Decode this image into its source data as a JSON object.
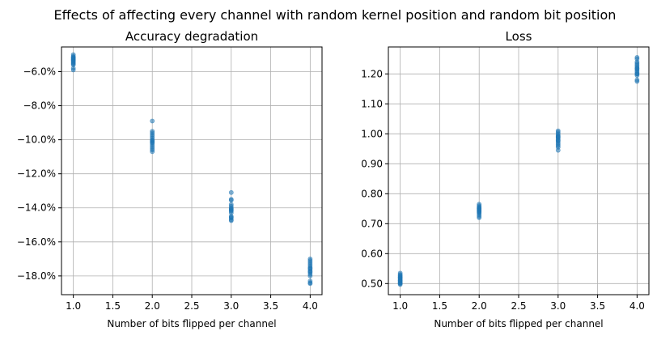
{
  "figure": {
    "suptitle": "Effects of affecting every channel with random kernel position and random bit position",
    "point_color": "#1f77b4"
  },
  "chart_data": [
    {
      "type": "scatter",
      "title": "Accuracy degradation",
      "xlabel": "Number of bits flipped per channel",
      "ylabel": "",
      "xlim": [
        0.85,
        4.15
      ],
      "ylim": [
        -19.1,
        -4.55
      ],
      "xticks": [
        1.0,
        1.5,
        2.0,
        2.5,
        3.0,
        3.5,
        4.0
      ],
      "xtick_labels": [
        "1.0",
        "1.5",
        "2.0",
        "2.5",
        "3.0",
        "3.5",
        "4.0"
      ],
      "yticks": [
        -18,
        -16,
        -14,
        -12,
        -10,
        -8,
        -6
      ],
      "ytick_labels": [
        "−18.0%",
        "−16.0%",
        "−14.0%",
        "−12.0%",
        "−10.0%",
        "−8.0%",
        "−6.0%"
      ],
      "grid": true,
      "series": [
        {
          "x": [
            1,
            1,
            1,
            1,
            1,
            1,
            1,
            1,
            1,
            1,
            1,
            1,
            1,
            1,
            1,
            1,
            2,
            2,
            2,
            2,
            2,
            2,
            2,
            2,
            2,
            2,
            2,
            2,
            2,
            2,
            2,
            2,
            3,
            3,
            3,
            3,
            3,
            3,
            3,
            3,
            3,
            3,
            3,
            3,
            3,
            3,
            3,
            3,
            4,
            4,
            4,
            4,
            4,
            4,
            4,
            4,
            4,
            4,
            4,
            4,
            4,
            4,
            4,
            4
          ],
          "y": [
            -5.0,
            -5.1,
            -5.15,
            -5.2,
            -5.25,
            -5.3,
            -5.35,
            -5.4,
            -5.45,
            -5.5,
            -5.55,
            -5.6,
            -5.3,
            -5.2,
            -5.8,
            -5.9,
            -8.9,
            -9.5,
            -9.6,
            -9.7,
            -9.8,
            -9.9,
            -10.0,
            -10.05,
            -10.1,
            -10.15,
            -10.2,
            -10.3,
            -10.4,
            -10.5,
            -10.6,
            -10.7,
            -13.1,
            -13.5,
            -13.55,
            -13.8,
            -13.9,
            -14.0,
            -14.05,
            -14.1,
            -14.15,
            -14.2,
            -14.3,
            -14.5,
            -14.55,
            -14.6,
            -14.7,
            -14.75,
            -17.0,
            -17.1,
            -17.2,
            -17.3,
            -17.4,
            -17.5,
            -17.55,
            -17.6,
            -17.7,
            -17.75,
            -17.8,
            -17.9,
            -18.0,
            -18.3,
            -18.4,
            -18.45
          ]
        }
      ]
    },
    {
      "type": "scatter",
      "title": "Loss",
      "xlabel": "Number of bits flipped per channel",
      "ylabel": "",
      "xlim": [
        0.85,
        4.15
      ],
      "ylim": [
        0.463,
        1.29
      ],
      "xticks": [
        1.0,
        1.5,
        2.0,
        2.5,
        3.0,
        3.5,
        4.0
      ],
      "xtick_labels": [
        "1.0",
        "1.5",
        "2.0",
        "2.5",
        "3.0",
        "3.5",
        "4.0"
      ],
      "yticks": [
        0.5,
        0.6,
        0.7,
        0.8,
        0.9,
        1.0,
        1.1,
        1.2
      ],
      "ytick_labels": [
        "0.50",
        "0.60",
        "0.70",
        "0.80",
        "0.90",
        "1.00",
        "1.10",
        "1.20"
      ],
      "grid": true,
      "series": [
        {
          "x": [
            1,
            1,
            1,
            1,
            1,
            1,
            1,
            1,
            1,
            1,
            1,
            1,
            1,
            1,
            1,
            1,
            2,
            2,
            2,
            2,
            2,
            2,
            2,
            2,
            2,
            2,
            2,
            2,
            2,
            2,
            2,
            2,
            3,
            3,
            3,
            3,
            3,
            3,
            3,
            3,
            3,
            3,
            3,
            3,
            3,
            3,
            3,
            3,
            4,
            4,
            4,
            4,
            4,
            4,
            4,
            4,
            4,
            4,
            4,
            4,
            4,
            4,
            4,
            4
          ],
          "y": [
            0.497,
            0.5,
            0.503,
            0.506,
            0.509,
            0.512,
            0.515,
            0.518,
            0.521,
            0.524,
            0.527,
            0.53,
            0.535,
            0.502,
            0.51,
            0.52,
            0.72,
            0.725,
            0.73,
            0.735,
            0.74,
            0.742,
            0.745,
            0.748,
            0.75,
            0.753,
            0.756,
            0.76,
            0.765,
            0.738,
            0.745,
            0.752,
            0.945,
            0.955,
            0.96,
            0.965,
            0.97,
            0.975,
            0.98,
            0.985,
            0.99,
            0.995,
            1.0,
            1.005,
            1.01,
            0.978,
            0.988,
            0.992,
            1.175,
            1.18,
            1.195,
            1.2,
            1.205,
            1.21,
            1.215,
            1.22,
            1.225,
            1.23,
            1.235,
            1.24,
            1.25,
            1.255,
            1.2,
            1.218
          ]
        }
      ]
    }
  ]
}
